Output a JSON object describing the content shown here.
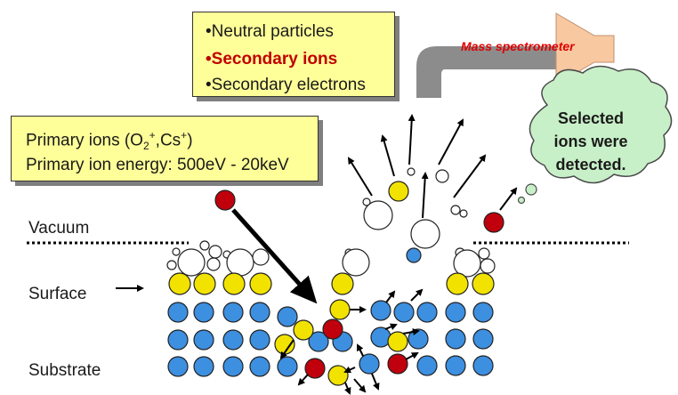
{
  "emission_box": {
    "line1": "•Neutral particles",
    "line2": "•Secondary ions",
    "line3": "•Secondary electrons"
  },
  "primary_box": {
    "ion_prefix": "Primary ions (O",
    "ion_sub": "2",
    "ion_sup1": "+",
    "ion_mid": ",Cs",
    "ion_sup2": "+",
    "ion_suffix": ")",
    "energy": "Primary ion energy: 500eV - 20keV"
  },
  "labels": {
    "vacuum": "Vacuum",
    "surface": "Surface",
    "substrate": "Substrate"
  },
  "mass_spectrometer": "Mass spectrometer",
  "cloud": {
    "line1": "Selected",
    "line2": "ions were",
    "line3": "detected."
  },
  "colors": {
    "blue_atom": "#3d8fe0",
    "yellow_atom": "#f2e200",
    "red_ion": "#c0000c",
    "text_box_fill": "#ffff99",
    "cloud_fill": "#c8f0c8",
    "cone_fill": "#f8c8a0",
    "pipe_fill": "#8c8c8c"
  }
}
